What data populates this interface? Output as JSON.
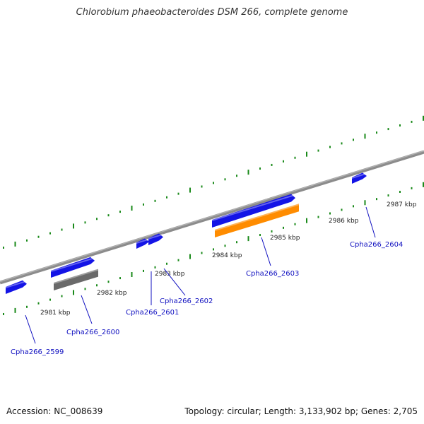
{
  "title": "Chlorobium phaeobacteroides DSM 266, complete genome",
  "footer": {
    "accession": "Accession: NC_008639",
    "topology": "Topology: circular; Length: 3,133,902 bp; Genes: 2,705"
  },
  "colors": {
    "backbone": "#8c8c8c",
    "tick": "#1a8a1a",
    "gene_blue": "#1414e6",
    "gene_gray": "#6a6a6a",
    "gene_orange": "#ff8c00",
    "label": "#1010c0"
  },
  "kbp_labels": [
    {
      "text": "2981 kbp"
    },
    {
      "text": "2982 kbp"
    },
    {
      "text": "2983 kbp"
    },
    {
      "text": "2984 kbp"
    },
    {
      "text": "2985 kbp"
    },
    {
      "text": "2986 kbp"
    },
    {
      "text": "2987 kbp"
    }
  ],
  "gene_labels": [
    {
      "text": "Cpha266_2599"
    },
    {
      "text": "Cpha266_2600"
    },
    {
      "text": "Cpha266_2601"
    },
    {
      "text": "Cpha266_2602"
    },
    {
      "text": "Cpha266_2603"
    },
    {
      "text": "Cpha266_2604"
    }
  ]
}
